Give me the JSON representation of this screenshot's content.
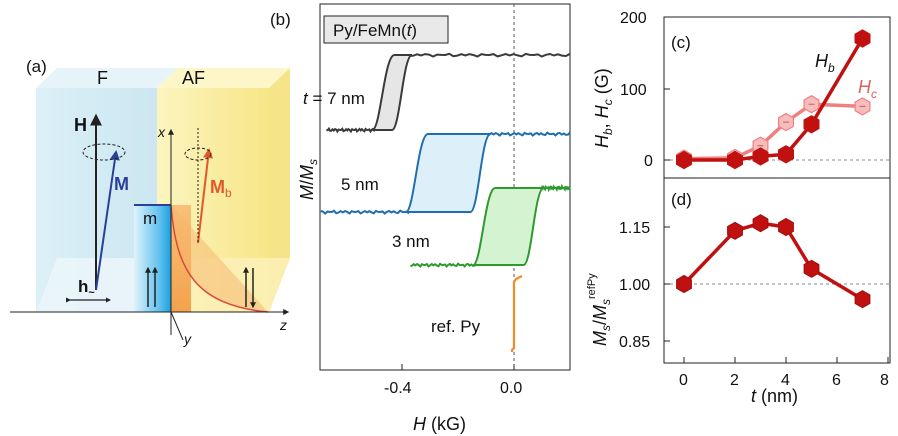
{
  "panel_a": {
    "label": "(a)",
    "layer_f": "F",
    "layer_af": "AF",
    "vec_H": "H",
    "vec_M": "M",
    "vec_Mb": "M",
    "vec_Mb_sub": "b",
    "interface": "m",
    "field_h": "h",
    "field_h_sub": "~",
    "axis_x": "x",
    "axis_y": "y",
    "axis_z": "z",
    "colors": {
      "m": "#2b3f9a",
      "mb": "#e0582a",
      "af": "#f5e96b",
      "f": "#cfe8f2"
    }
  },
  "panel_b": {
    "label": "(b)",
    "title_prefix": "Py/FeMn(",
    "title_var": "t",
    "title_suffix": ")",
    "ylabel_main": "M",
    "ylabel_slash": "/",
    "ylabel_M": "M",
    "ylabel_sub": "s",
    "xlabel_var": "H",
    "xlabel_unit": " (kG)",
    "xticks": [
      "-0.4",
      "0.0"
    ],
    "curve_labels": [
      "t = 7 nm",
      "5 nm",
      "3 nm",
      "ref. Py"
    ]
  },
  "chart_data": [
    {
      "type": "line",
      "panel": "(b)",
      "xlabel": "H (kG)",
      "ylabel": "M/Ms",
      "xlim": [
        -0.69,
        0.21
      ],
      "series": [
        {
          "name": "t = 7 nm",
          "color": "#3a3a3a",
          "fill": "#e6e6e6",
          "lower_branch_switch": -0.4,
          "upper_branch_switch": -0.47,
          "width": 0.07
        },
        {
          "name": "5 nm",
          "color": "#1f6fb0",
          "fill": "#ddf0fa",
          "lower_branch_switch": -0.12,
          "upper_branch_switch": -0.35,
          "width": 0.23
        },
        {
          "name": "3 nm",
          "color": "#2e9a2e",
          "fill": "#d4f3d0",
          "lower_branch_switch": 0.07,
          "upper_branch_switch": -0.11,
          "width": 0.18
        },
        {
          "name": "ref. Py",
          "color": "#f28c28",
          "lower_branch_switch": 0.0,
          "upper_branch_switch": 0.0,
          "width": 0.0
        }
      ]
    },
    {
      "type": "line",
      "panel": "(c)",
      "xlabel": "t (nm)",
      "ylabel": "Hb, Hc (G)",
      "xlim": [
        -1,
        8
      ],
      "ylim": [
        -30,
        200
      ],
      "yticks": [
        0,
        100,
        200
      ],
      "series": [
        {
          "name": "Hb",
          "color": "#c01010",
          "x": [
            0,
            2,
            3,
            4,
            5,
            7
          ],
          "y": [
            0,
            0,
            5,
            8,
            50,
            170
          ]
        },
        {
          "name": "Hc",
          "color": "#f08080",
          "x": [
            0,
            2,
            3,
            4,
            5,
            7
          ],
          "y": [
            2,
            3,
            20,
            53,
            78,
            75
          ]
        }
      ]
    },
    {
      "type": "line",
      "panel": "(d)",
      "xlabel": "t (nm)",
      "ylabel": "Ms/Ms^refPy",
      "xlim": [
        -1,
        8
      ],
      "ylim": [
        0.85,
        1.22
      ],
      "yticks": [
        0.85,
        1.0,
        1.15
      ],
      "xticks": [
        0,
        2,
        4,
        6,
        8
      ],
      "series": [
        {
          "name": "Ms/Ms^refPy",
          "color": "#c01010",
          "x": [
            0,
            2,
            3,
            4,
            5,
            7
          ],
          "y": [
            1.0,
            1.14,
            1.16,
            1.15,
            1.04,
            0.96
          ]
        }
      ]
    }
  ],
  "panel_c": {
    "label": "(c)",
    "ylabel": [
      "H",
      "b",
      ", ",
      "H",
      "c",
      " (G)"
    ],
    "yticks": [
      "0",
      "100",
      "200"
    ],
    "series_label_b": "H",
    "series_label_b_sub": "b",
    "series_label_c": "H",
    "series_label_c_sub": "c"
  },
  "panel_d": {
    "label": "(d)",
    "ylabel_a": "M",
    "ylabel_a_sub": "s",
    "ylabel_slash": "/",
    "ylabel_b": "M",
    "ylabel_b_sub": "s",
    "ylabel_b_sup": "refPy",
    "yticks": [
      "0.85",
      "1.00",
      "1.15"
    ],
    "xticks": [
      "0",
      "2",
      "4",
      "6",
      "8"
    ],
    "xlabel_var": "t",
    "xlabel_unit": " (nm)"
  }
}
